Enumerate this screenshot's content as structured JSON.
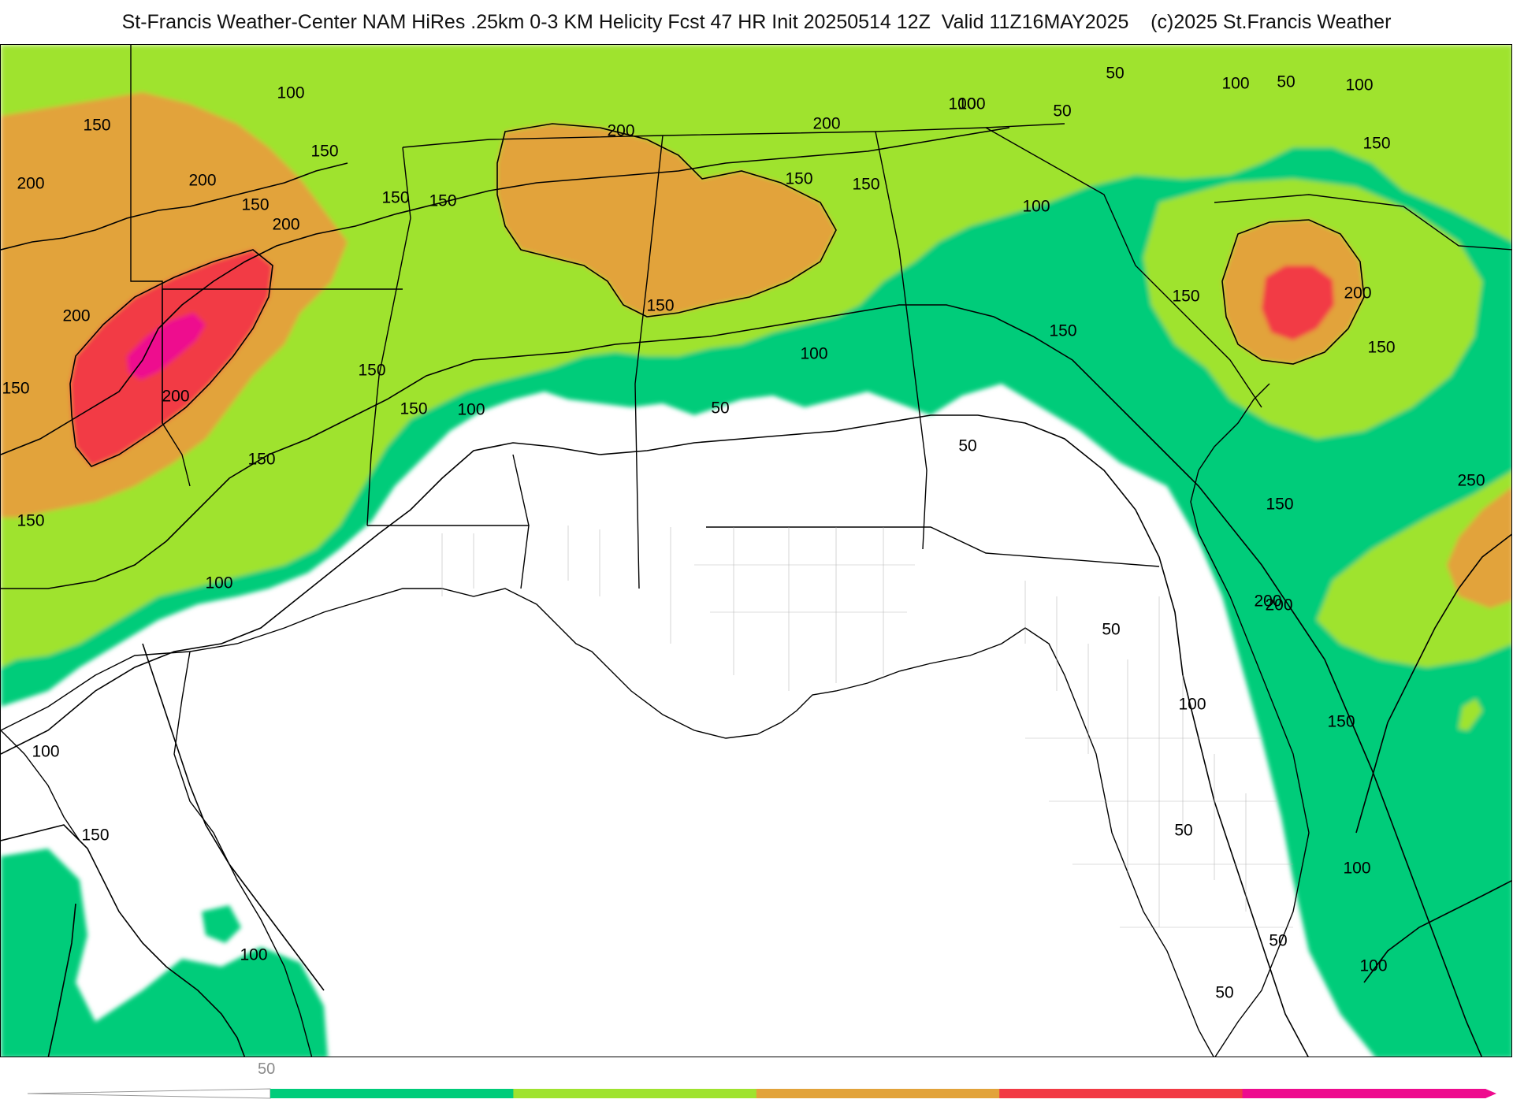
{
  "header": {
    "title": "St-Francis Weather-Center NAM HiRes .25km 0-3 KM Helicity Fcst 47 HR Init 20250514 12Z  Valid 11Z16MAY2025    (c)2025 St.Francis Weather"
  },
  "legend": {
    "tick_label": "50",
    "colors": [
      "#00cc7a",
      "#9fe32f",
      "#e2a33a",
      "#f23a44",
      "#ee0b8e"
    ]
  },
  "contour_labels": [
    {
      "text": "200"
    },
    {
      "text": "100"
    },
    {
      "text": "150"
    },
    {
      "text": "150"
    },
    {
      "text": "200"
    },
    {
      "text": "150"
    },
    {
      "text": "150"
    },
    {
      "text": "150"
    },
    {
      "text": "200"
    },
    {
      "text": "200"
    },
    {
      "text": "200"
    },
    {
      "text": "200"
    },
    {
      "text": "200"
    },
    {
      "text": "150"
    },
    {
      "text": "100"
    },
    {
      "text": "50"
    },
    {
      "text": "100"
    },
    {
      "text": "50"
    },
    {
      "text": "100"
    },
    {
      "text": "150"
    },
    {
      "text": "100"
    },
    {
      "text": "150"
    },
    {
      "text": "150"
    },
    {
      "text": "200"
    },
    {
      "text": "150"
    },
    {
      "text": "150"
    },
    {
      "text": "150"
    },
    {
      "text": "150"
    },
    {
      "text": "100"
    },
    {
      "text": "100"
    },
    {
      "text": "150"
    },
    {
      "text": "100"
    },
    {
      "text": "50"
    },
    {
      "text": "50"
    },
    {
      "text": "50"
    },
    {
      "text": "150"
    },
    {
      "text": "100"
    },
    {
      "text": "150"
    },
    {
      "text": "200"
    },
    {
      "text": "150"
    },
    {
      "text": "250"
    },
    {
      "text": "150"
    },
    {
      "text": "200"
    },
    {
      "text": "50"
    },
    {
      "text": "100"
    },
    {
      "text": "50"
    },
    {
      "text": "150"
    },
    {
      "text": "100"
    },
    {
      "text": "50"
    },
    {
      "text": "50"
    },
    {
      "text": "100"
    },
    {
      "text": "100"
    },
    {
      "text": "150"
    },
    {
      "text": "100"
    }
  ]
}
